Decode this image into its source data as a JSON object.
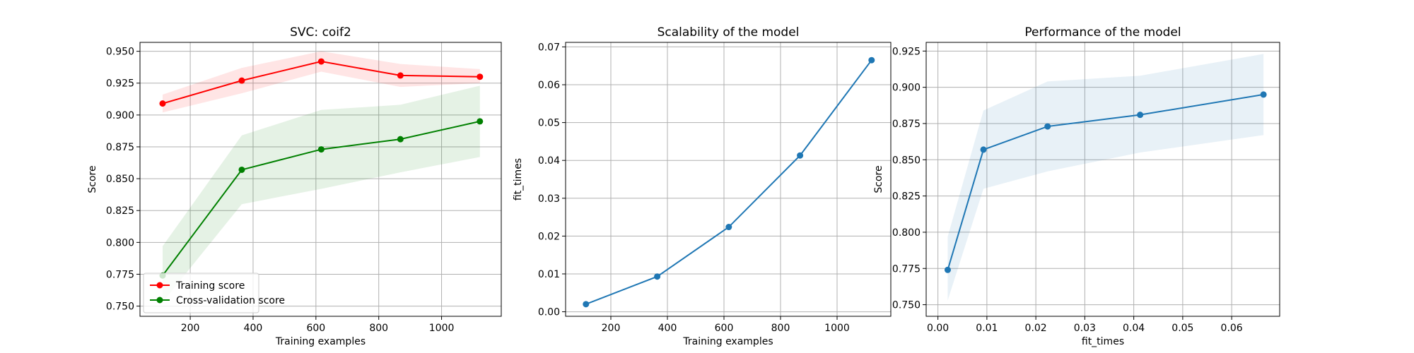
{
  "chart_data": [
    {
      "type": "line",
      "title": "SVC: coif2",
      "xlabel": "Training examples",
      "ylabel": "Score",
      "xlim": [
        40,
        1190
      ],
      "ylim": [
        0.742,
        0.957
      ],
      "xticks": [
        200,
        400,
        600,
        800,
        1000
      ],
      "xtick_labels": [
        "200",
        "400",
        "600",
        "800",
        "1000"
      ],
      "yticks": [
        0.75,
        0.775,
        0.8,
        0.825,
        0.85,
        0.875,
        0.9,
        0.925,
        0.95
      ],
      "ytick_labels": [
        "0.750",
        "0.775",
        "0.800",
        "0.825",
        "0.850",
        "0.875",
        "0.900",
        "0.925",
        "0.950"
      ],
      "grid": true,
      "legend_position": "lower-left",
      "x": [
        112,
        364,
        617,
        869,
        1122
      ],
      "series": [
        {
          "name": "Training score",
          "color": "#ff0000",
          "values": [
            0.909,
            0.927,
            0.942,
            0.931,
            0.93
          ],
          "band_lower": [
            0.902,
            0.917,
            0.934,
            0.922,
            0.925
          ],
          "band_upper": [
            0.916,
            0.937,
            0.95,
            0.94,
            0.936
          ]
        },
        {
          "name": "Cross-validation score",
          "color": "#008000",
          "values": [
            0.774,
            0.857,
            0.873,
            0.881,
            0.895
          ],
          "band_lower": [
            0.753,
            0.83,
            0.842,
            0.855,
            0.867
          ],
          "band_upper": [
            0.797,
            0.884,
            0.904,
            0.908,
            0.923
          ]
        }
      ]
    },
    {
      "type": "line",
      "title": "Scalability of the model",
      "xlabel": "Training examples",
      "ylabel": "fit_times",
      "xlim": [
        40,
        1190
      ],
      "ylim": [
        -0.0012,
        0.0712
      ],
      "xticks": [
        200,
        400,
        600,
        800,
        1000
      ],
      "xtick_labels": [
        "200",
        "400",
        "600",
        "800",
        "1000"
      ],
      "yticks": [
        0.0,
        0.01,
        0.02,
        0.03,
        0.04,
        0.05,
        0.06,
        0.07
      ],
      "ytick_labels": [
        "0.00",
        "0.01",
        "0.02",
        "0.03",
        "0.04",
        "0.05",
        "0.06",
        "0.07"
      ],
      "grid": true,
      "x": [
        112,
        364,
        617,
        869,
        1122
      ],
      "series": [
        {
          "color": "#1f77b4",
          "values": [
            0.002,
            0.0093,
            0.0224,
            0.0413,
            0.0665
          ]
        }
      ]
    },
    {
      "type": "line",
      "title": "Performance of the model",
      "xlabel": "fit_times",
      "ylabel": "Score",
      "xlim": [
        -0.0024,
        0.0698
      ],
      "ylim": [
        0.742,
        0.931
      ],
      "xticks": [
        0.0,
        0.01,
        0.02,
        0.03,
        0.04,
        0.05,
        0.06
      ],
      "xtick_labels": [
        "0.00",
        "0.01",
        "0.02",
        "0.03",
        "0.04",
        "0.05",
        "0.06"
      ],
      "yticks": [
        0.75,
        0.775,
        0.8,
        0.825,
        0.85,
        0.875,
        0.9,
        0.925
      ],
      "ytick_labels": [
        "0.750",
        "0.775",
        "0.800",
        "0.825",
        "0.850",
        "0.875",
        "0.900",
        "0.925"
      ],
      "grid": true,
      "x": [
        0.002,
        0.0093,
        0.0224,
        0.0413,
        0.0665
      ],
      "series": [
        {
          "color": "#1f77b4",
          "values": [
            0.774,
            0.857,
            0.873,
            0.881,
            0.895
          ],
          "band_lower": [
            0.753,
            0.83,
            0.842,
            0.855,
            0.867
          ],
          "band_upper": [
            0.797,
            0.884,
            0.904,
            0.908,
            0.923
          ]
        }
      ]
    }
  ]
}
